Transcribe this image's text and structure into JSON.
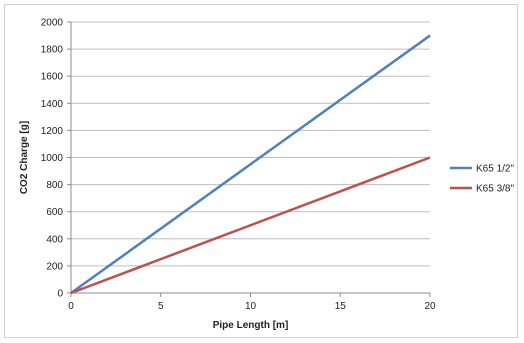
{
  "chart_data": {
    "type": "line",
    "title": "",
    "xlabel": "Pipe Length [m]",
    "ylabel": "CO2 Charge [g]",
    "xlim": [
      0,
      20
    ],
    "ylim": [
      0,
      2000
    ],
    "xticks": [
      0,
      5,
      10,
      15,
      20
    ],
    "yticks": [
      0,
      200,
      400,
      600,
      800,
      1000,
      1200,
      1400,
      1600,
      1800,
      2000
    ],
    "grid": "horizontal",
    "legend_position": "right",
    "series": [
      {
        "name": "K65 1/2\"",
        "color": "#4f81bd",
        "x": [
          0,
          20
        ],
        "y": [
          0,
          1900
        ]
      },
      {
        "name": "K65 3/8\"",
        "color": "#c0504d",
        "x": [
          0,
          20
        ],
        "y": [
          0,
          1000
        ]
      }
    ]
  }
}
